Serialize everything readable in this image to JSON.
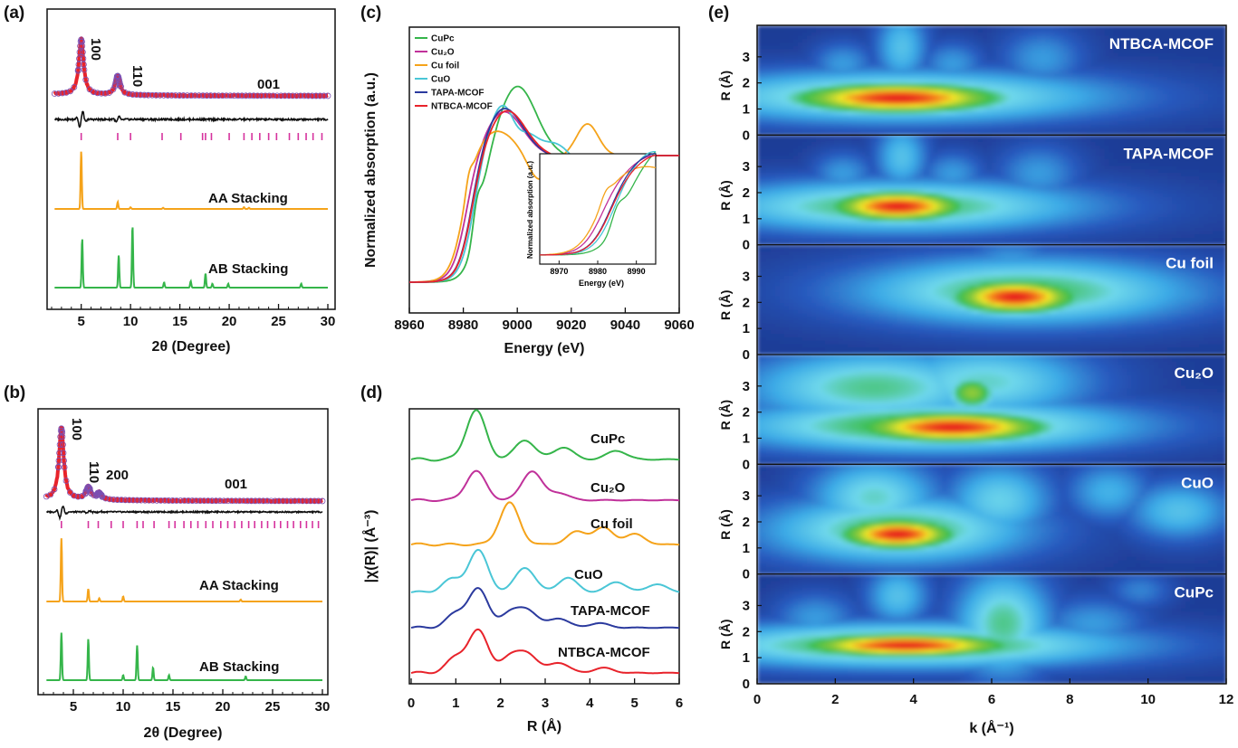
{
  "panels": {
    "a": "(a)",
    "b": "(b)",
    "c": "(c)",
    "d": "(d)",
    "e": "(e)"
  },
  "chart_data": [
    {
      "id": "a",
      "type": "line",
      "xlabel": "2θ (Degree)",
      "xlim": [
        2,
        30
      ],
      "xticks": [
        5,
        10,
        15,
        20,
        25,
        30
      ],
      "peak_labels": [
        {
          "text": "100",
          "x": 5.0
        },
        {
          "text": "110",
          "x": 8.7
        },
        {
          "text": "001",
          "x": 23.5
        }
      ],
      "series": [
        {
          "name": "experimental",
          "color": "#e8232b",
          "peaks": [
            [
              5.0,
              1.0
            ],
            [
              8.7,
              0.35
            ]
          ]
        },
        {
          "name": "fit",
          "color": "#7a4fb3",
          "peaks": [
            [
              5.0,
              1.0
            ],
            [
              8.7,
              0.35
            ]
          ]
        },
        {
          "name": "difference",
          "color": "#111111"
        },
        {
          "name": "Bragg positions",
          "color": "#d6339e",
          "x": [
            5.0,
            8.7,
            10.0,
            13.2,
            15.1,
            17.3,
            17.6,
            18.2,
            20.0,
            21.5,
            22.3,
            23.1,
            24.0,
            24.8,
            26.1,
            27.0,
            27.8,
            28.5,
            29.4
          ]
        },
        {
          "name": "AA Stacking",
          "color": "#f5a31a",
          "peaks": [
            [
              5.0,
              1.0
            ],
            [
              8.7,
              0.12
            ],
            [
              10.0,
              0.03
            ],
            [
              13.3,
              0.02
            ],
            [
              21.5,
              0.03
            ],
            [
              22.0,
              0.02
            ]
          ]
        },
        {
          "name": "AB Stacking",
          "color": "#35b54a",
          "peaks": [
            [
              5.1,
              0.75
            ],
            [
              8.8,
              0.5
            ],
            [
              10.2,
              0.95
            ],
            [
              13.4,
              0.08
            ],
            [
              16.1,
              0.1
            ],
            [
              17.6,
              0.22
            ],
            [
              18.3,
              0.06
            ],
            [
              19.9,
              0.06
            ],
            [
              27.3,
              0.06
            ]
          ]
        }
      ]
    },
    {
      "id": "b",
      "type": "line",
      "xlabel": "2θ (Degree)",
      "xlim": [
        2,
        30
      ],
      "xticks": [
        5,
        10,
        15,
        20,
        25,
        30
      ],
      "peak_labels": [
        {
          "text": "100",
          "x": 3.8
        },
        {
          "text": "110",
          "x": 6.5
        },
        {
          "text": "200",
          "x": 7.6
        },
        {
          "text": "001",
          "x": 21.5
        }
      ],
      "series": [
        {
          "name": "experimental",
          "color": "#e8232b",
          "peaks": [
            [
              3.8,
              1.0
            ],
            [
              6.5,
              0.18
            ],
            [
              7.6,
              0.1
            ]
          ]
        },
        {
          "name": "fit",
          "color": "#7a4fb3",
          "peaks": [
            [
              3.8,
              1.0
            ],
            [
              6.5,
              0.18
            ],
            [
              7.6,
              0.1
            ]
          ]
        },
        {
          "name": "difference",
          "color": "#111111"
        },
        {
          "name": "Bragg positions",
          "color": "#d6339e",
          "x": [
            3.8,
            6.5,
            7.5,
            8.8,
            10.0,
            11.4,
            12.0,
            13.1,
            14.6,
            15.2,
            16.1,
            16.8,
            17.5,
            18.3,
            19.0,
            19.8,
            20.5,
            21.2,
            21.9,
            22.6,
            23.2,
            23.9,
            24.5,
            25.2,
            25.8,
            26.5,
            27.1,
            27.8,
            28.4,
            29.0,
            29.6
          ]
        },
        {
          "name": "AA Stacking",
          "color": "#f5a31a",
          "peaks": [
            [
              3.8,
              1.0
            ],
            [
              6.5,
              0.2
            ],
            [
              7.6,
              0.05
            ],
            [
              10.0,
              0.08
            ],
            [
              21.8,
              0.03
            ]
          ]
        },
        {
          "name": "AB Stacking",
          "color": "#35b54a",
          "peaks": [
            [
              3.8,
              0.75
            ],
            [
              6.5,
              0.65
            ],
            [
              10.0,
              0.08
            ],
            [
              11.4,
              0.55
            ],
            [
              13.0,
              0.2
            ],
            [
              14.6,
              0.08
            ],
            [
              22.3,
              0.06
            ]
          ]
        }
      ]
    },
    {
      "id": "c",
      "type": "line",
      "xlabel": "Energy (eV)",
      "ylabel": "Normalized absorption (a.u.)",
      "xlim": [
        8960,
        9060
      ],
      "xticks": [
        8960,
        8980,
        9000,
        9020,
        9040,
        9060
      ],
      "series": [
        {
          "name": "CuPc",
          "color": "#35b54a",
          "edge": 8986,
          "wl": [
            9000,
            1.55
          ]
        },
        {
          "name": "Cu₂O",
          "color": "#c0319a",
          "edge": 8981,
          "wl": [
            8995,
            1.35
          ]
        },
        {
          "name": "Cu foil",
          "color": "#f5a31a",
          "edge": 8980,
          "wl": [
            8992,
            1.2
          ]
        },
        {
          "name": "CuO",
          "color": "#4ac6d6",
          "edge": 8984,
          "wl": [
            8996,
            1.45
          ]
        },
        {
          "name": "TAPA-MCOF",
          "color": "#2b3a9e",
          "edge": 8983,
          "wl": [
            8995,
            1.38
          ]
        },
        {
          "name": "NTBCA-MCOF",
          "color": "#e8232b",
          "edge": 8983,
          "wl": [
            8996,
            1.36
          ]
        }
      ],
      "inset": {
        "xlabel": "Energy (eV)",
        "ylabel": "Normalized absorption (a.u.)",
        "xlim": [
          8965,
          8995
        ],
        "xticks": [
          8970,
          8980,
          8990
        ]
      }
    },
    {
      "id": "d",
      "type": "line",
      "xlabel": "R (Å)",
      "ylabel": "|χ(R)| (Å⁻³)",
      "xlim": [
        0,
        6
      ],
      "xticks": [
        0,
        1,
        2,
        3,
        4,
        5,
        6
      ],
      "series": [
        {
          "name": "CuPc",
          "color": "#35b54a",
          "peaks": [
            [
              1.45,
              1.0
            ],
            [
              2.55,
              0.4
            ],
            [
              3.4,
              0.25
            ],
            [
              4.6,
              0.18
            ]
          ]
        },
        {
          "name": "Cu₂O",
          "color": "#c0319a",
          "peaks": [
            [
              1.45,
              0.8
            ],
            [
              2.7,
              0.8
            ],
            [
              3.3,
              0.2
            ]
          ]
        },
        {
          "name": "Cu foil",
          "color": "#f5a31a",
          "peaks": [
            [
              2.2,
              1.0
            ],
            [
              3.7,
              0.3
            ],
            [
              4.3,
              0.4
            ],
            [
              5.0,
              0.25
            ]
          ]
        },
        {
          "name": "CuO",
          "color": "#4ac6d6",
          "peaks": [
            [
              0.9,
              0.3
            ],
            [
              1.5,
              1.0
            ],
            [
              2.55,
              0.6
            ],
            [
              3.5,
              0.35
            ],
            [
              4.6,
              0.25
            ],
            [
              5.5,
              0.2
            ]
          ]
        },
        {
          "name": "TAPA-MCOF",
          "color": "#2b3a9e",
          "peaks": [
            [
              1.0,
              0.35
            ],
            [
              1.5,
              1.0
            ],
            [
              2.2,
              0.35
            ],
            [
              2.6,
              0.45
            ],
            [
              3.3,
              0.25
            ],
            [
              4.2,
              0.12
            ]
          ]
        },
        {
          "name": "NTBCA-MCOF",
          "color": "#e8232b",
          "peaks": [
            [
              1.0,
              0.35
            ],
            [
              1.5,
              1.0
            ],
            [
              2.2,
              0.35
            ],
            [
              2.6,
              0.45
            ],
            [
              3.3,
              0.25
            ],
            [
              4.3,
              0.12
            ]
          ]
        }
      ]
    },
    {
      "id": "e",
      "type": "heatmap",
      "xlabel": "k (Å⁻¹)",
      "ylabel": "R (Å)",
      "xlim": [
        0,
        12
      ],
      "ylim": [
        0,
        4
      ],
      "xticks": [
        0,
        2,
        4,
        6,
        8,
        10,
        12
      ],
      "yticks": [
        0,
        1,
        2,
        3
      ],
      "maps": [
        {
          "name": "NTBCA-MCOF",
          "blobs": [
            [
              3.6,
              1.35,
              2.2,
              0.45,
              1.0
            ],
            [
              3.6,
              1.4,
              4.0,
              0.7,
              0.55
            ],
            [
              1.5,
              1.4,
              1.0,
              0.6,
              0.35
            ],
            [
              3.7,
              3.2,
              0.5,
              1.0,
              0.35
            ],
            [
              2.2,
              2.6,
              0.6,
              0.6,
              0.25
            ],
            [
              5.0,
              2.6,
              0.6,
              0.6,
              0.25
            ],
            [
              7.3,
              2.8,
              0.8,
              0.8,
              0.25
            ],
            [
              9.0,
              1.4,
              1.0,
              0.5,
              0.15
            ]
          ]
        },
        {
          "name": "TAPA-MCOF",
          "blobs": [
            [
              3.6,
              1.4,
              1.4,
              0.45,
              1.0
            ],
            [
              3.6,
              1.4,
              3.6,
              0.7,
              0.55
            ],
            [
              1.8,
              1.4,
              1.0,
              0.6,
              0.35
            ],
            [
              3.7,
              3.2,
              0.5,
              0.9,
              0.35
            ],
            [
              2.2,
              2.6,
              0.6,
              0.6,
              0.25
            ],
            [
              5.0,
              2.6,
              0.6,
              0.6,
              0.25
            ],
            [
              7.2,
              2.6,
              0.8,
              0.8,
              0.25
            ],
            [
              9.0,
              1.2,
              1.0,
              0.5,
              0.15
            ]
          ]
        },
        {
          "name": "Cu foil",
          "blobs": [
            [
              6.6,
              2.1,
              1.3,
              0.5,
              1.0
            ],
            [
              6.8,
              2.3,
              3.2,
              0.9,
              0.55
            ],
            [
              9.0,
              2.4,
              1.6,
              0.8,
              0.35
            ],
            [
              10.6,
              2.2,
              1.2,
              0.6,
              0.25
            ],
            [
              6.5,
              3.4,
              1.0,
              0.6,
              0.25
            ]
          ]
        },
        {
          "name": "Cu₂O",
          "blobs": [
            [
              5.0,
              1.35,
              2.0,
              0.45,
              1.0
            ],
            [
              4.5,
              1.4,
              3.8,
              0.7,
              0.6
            ],
            [
              5.5,
              2.6,
              0.5,
              0.5,
              0.7
            ],
            [
              3.0,
              2.8,
              2.4,
              1.0,
              0.5
            ],
            [
              5.8,
              3.0,
              2.0,
              1.0,
              0.45
            ],
            [
              8.5,
              1.3,
              1.4,
              0.5,
              0.25
            ]
          ]
        },
        {
          "name": "CuO",
          "blobs": [
            [
              3.6,
              1.45,
              1.2,
              0.45,
              1.0
            ],
            [
              3.6,
              1.6,
              2.5,
              0.9,
              0.55
            ],
            [
              3.0,
              2.8,
              1.2,
              1.0,
              0.45
            ],
            [
              6.2,
              2.7,
              1.0,
              1.0,
              0.4
            ],
            [
              9.0,
              3.0,
              0.8,
              0.8,
              0.3
            ],
            [
              10.8,
              2.3,
              1.0,
              0.8,
              0.35
            ],
            [
              1.5,
              1.6,
              0.9,
              0.7,
              0.3
            ]
          ]
        },
        {
          "name": "CuPc",
          "blobs": [
            [
              3.8,
              1.4,
              2.2,
              0.35,
              1.0
            ],
            [
              3.8,
              1.4,
              4.2,
              0.6,
              0.6
            ],
            [
              6.3,
              2.2,
              0.9,
              1.4,
              0.5
            ],
            [
              3.6,
              3.2,
              0.6,
              0.8,
              0.35
            ],
            [
              1.5,
              2.4,
              0.8,
              0.7,
              0.25
            ],
            [
              8.6,
              2.2,
              1.0,
              0.7,
              0.25
            ],
            [
              9.8,
              3.4,
              0.6,
              0.5,
              0.2
            ]
          ]
        }
      ]
    }
  ]
}
